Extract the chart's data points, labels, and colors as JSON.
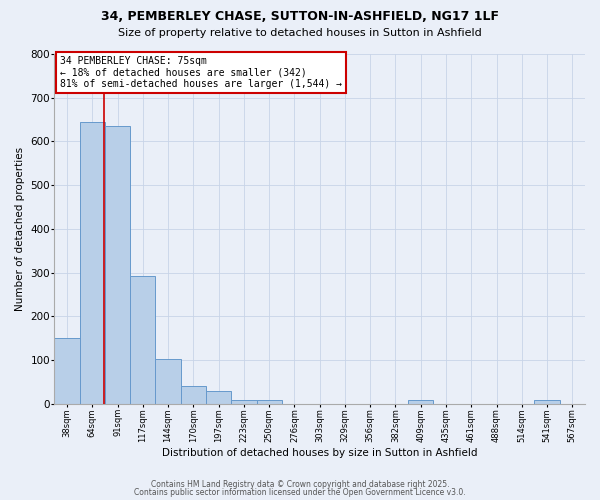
{
  "title": "34, PEMBERLEY CHASE, SUTTON-IN-ASHFIELD, NG17 1LF",
  "subtitle": "Size of property relative to detached houses in Sutton in Ashfield",
  "xlabel": "Distribution of detached houses by size in Sutton in Ashfield",
  "ylabel": "Number of detached properties",
  "bin_labels": [
    "38sqm",
    "64sqm",
    "91sqm",
    "117sqm",
    "144sqm",
    "170sqm",
    "197sqm",
    "223sqm",
    "250sqm",
    "276sqm",
    "303sqm",
    "329sqm",
    "356sqm",
    "382sqm",
    "409sqm",
    "435sqm",
    "461sqm",
    "488sqm",
    "514sqm",
    "541sqm",
    "567sqm"
  ],
  "bar_heights": [
    150,
    645,
    635,
    293,
    103,
    42,
    30,
    10,
    8,
    0,
    0,
    0,
    0,
    0,
    10,
    0,
    0,
    0,
    0,
    8,
    0
  ],
  "bar_color": "#b8cfe8",
  "bar_edge_color": "#6699cc",
  "red_line_index": 1.45,
  "annotation_text": "34 PEMBERLEY CHASE: 75sqm\n← 18% of detached houses are smaller (342)\n81% of semi-detached houses are larger (1,544) →",
  "annotation_box_color": "#ffffff",
  "annotation_border_color": "#cc0000",
  "red_line_color": "#cc0000",
  "ylim": [
    0,
    800
  ],
  "yticks": [
    0,
    100,
    200,
    300,
    400,
    500,
    600,
    700,
    800
  ],
  "grid_color": "#c8d4e8",
  "bg_color": "#eaeff8",
  "footer_line1": "Contains HM Land Registry data © Crown copyright and database right 2025.",
  "footer_line2": "Contains public sector information licensed under the Open Government Licence v3.0."
}
